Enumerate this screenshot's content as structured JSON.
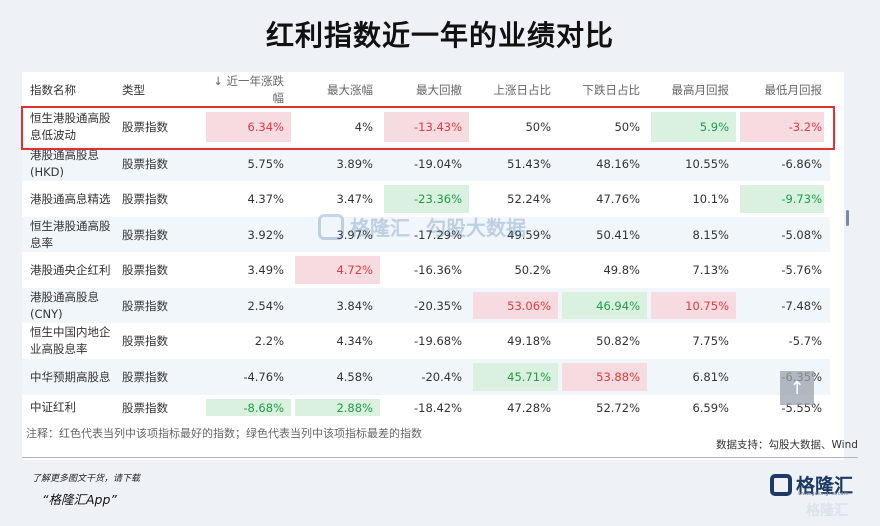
{
  "title": "红利指数近一年的业绩对比",
  "table": {
    "headers": [
      "指数名称",
      "类型",
      "↓ 近一年涨跌幅",
      "最大涨幅",
      "最大回撤",
      "上涨日占比",
      "下跌日占比",
      "最高月回报",
      "最低月回报"
    ],
    "rows": [
      {
        "name": "恒生港股通高股息低波动",
        "type": "股票指数",
        "values": [
          "6.34%",
          "4%",
          "-13.43%",
          "50%",
          "50%",
          "5.9%",
          "-3.2%"
        ],
        "hl": [
          "red",
          "",
          "red",
          "",
          "",
          "green",
          "red"
        ]
      },
      {
        "name": "港股通高股息(HKD)",
        "type": "股票指数",
        "values": [
          "5.75%",
          "3.89%",
          "-19.04%",
          "51.43%",
          "48.16%",
          "10.55%",
          "-6.86%"
        ],
        "hl": [
          "",
          "",
          "",
          "",
          "",
          "",
          ""
        ]
      },
      {
        "name": "港股通高息精选",
        "type": "股票指数",
        "values": [
          "4.37%",
          "3.47%",
          "-23.36%",
          "52.24%",
          "47.76%",
          "10.1%",
          "-9.73%"
        ],
        "hl": [
          "",
          "",
          "green",
          "",
          "",
          "",
          "green"
        ]
      },
      {
        "name": "恒生港股通高股息率",
        "type": "股票指数",
        "values": [
          "3.92%",
          "3.97%",
          "-17.29%",
          "49.59%",
          "50.41%",
          "8.15%",
          "-5.08%"
        ],
        "hl": [
          "",
          "",
          "",
          "",
          "",
          "",
          ""
        ]
      },
      {
        "name": "港股通央企红利",
        "type": "股票指数",
        "values": [
          "3.49%",
          "4.72%",
          "-16.36%",
          "50.2%",
          "49.8%",
          "7.13%",
          "-5.76%"
        ],
        "hl": [
          "",
          "red",
          "",
          "",
          "",
          "",
          ""
        ]
      },
      {
        "name": "港股通高股息(CNY)",
        "type": "股票指数",
        "values": [
          "2.54%",
          "3.84%",
          "-20.35%",
          "53.06%",
          "46.94%",
          "10.75%",
          "-7.48%"
        ],
        "hl": [
          "",
          "",
          "",
          "red",
          "green",
          "red",
          ""
        ]
      },
      {
        "name": "恒生中国内地企业高股息率",
        "type": "股票指数",
        "values": [
          "2.2%",
          "4.34%",
          "-19.68%",
          "49.18%",
          "50.82%",
          "7.75%",
          "-5.7%"
        ],
        "hl": [
          "",
          "",
          "",
          "",
          "",
          "",
          ""
        ]
      },
      {
        "name": "中华预期高股息",
        "type": "股票指数",
        "values": [
          "-4.76%",
          "4.58%",
          "-20.4%",
          "45.71%",
          "53.88%",
          "6.81%",
          "-6.35%"
        ],
        "hl": [
          "",
          "",
          "",
          "green",
          "red",
          "",
          ""
        ]
      },
      {
        "name": "中证红利",
        "type": "股票指数",
        "values": [
          "-8.68%",
          "2.88%",
          "-18.42%",
          "47.28%",
          "52.72%",
          "6.59%",
          "-5.55%"
        ],
        "hl": [
          "green",
          "green",
          "",
          "",
          "",
          "",
          ""
        ]
      }
    ]
  },
  "watermark": {
    "brand": "格隆汇",
    "brand2": "勾股大数据"
  },
  "footnote": "注释：红色代表当列中该项指标最好的指数；绿色代表当列中该项指标最差的指数",
  "source": "数据支持：勾股大数据、Wind",
  "promo": {
    "line1": "了解更多图文干货，请下载",
    "line2": "“格隆汇App”"
  },
  "brand": {
    "name": "格隆汇",
    "url": "www.gelonghui.com",
    "corner": "格隆汇"
  },
  "colors": {
    "best_red": "#e23b3b",
    "worst_green": "#1e9c4a",
    "border_red": "#e03030",
    "brand_blue": "#1d3a66"
  }
}
